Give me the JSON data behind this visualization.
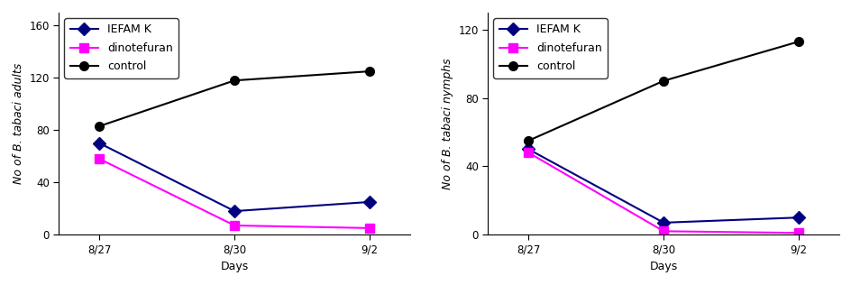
{
  "days": [
    "8/27",
    "8/30",
    "9/2"
  ],
  "left": {
    "iefam_k": [
      70,
      18,
      25
    ],
    "dinotefuran": [
      58,
      7,
      5
    ],
    "control": [
      83,
      118,
      125
    ],
    "ylabel": "No of B. tabaci adults",
    "ylim": [
      0,
      170
    ],
    "yticks": [
      0,
      40,
      80,
      120,
      160
    ]
  },
  "right": {
    "iefam_k": [
      50,
      7,
      10
    ],
    "dinotefuran": [
      48,
      2,
      1
    ],
    "control": [
      55,
      90,
      113
    ],
    "ylabel": "No of B. tabaci nymphs",
    "ylim": [
      0,
      130
    ],
    "yticks": [
      0,
      40,
      80,
      120
    ]
  },
  "iefam_k_color": "#000080",
  "dinotefuran_color": "#FF00FF",
  "control_color": "#000000",
  "iefam_k_marker": "D",
  "dinotefuran_marker": "s",
  "control_marker": "o",
  "xlabel": "Days",
  "legend_labels": [
    "IEFAM K",
    "dinotefuran",
    "control"
  ],
  "legend_fontsize": 9,
  "axis_fontsize": 9,
  "tick_fontsize": 8.5,
  "linewidth": 1.5,
  "markersize": 7
}
